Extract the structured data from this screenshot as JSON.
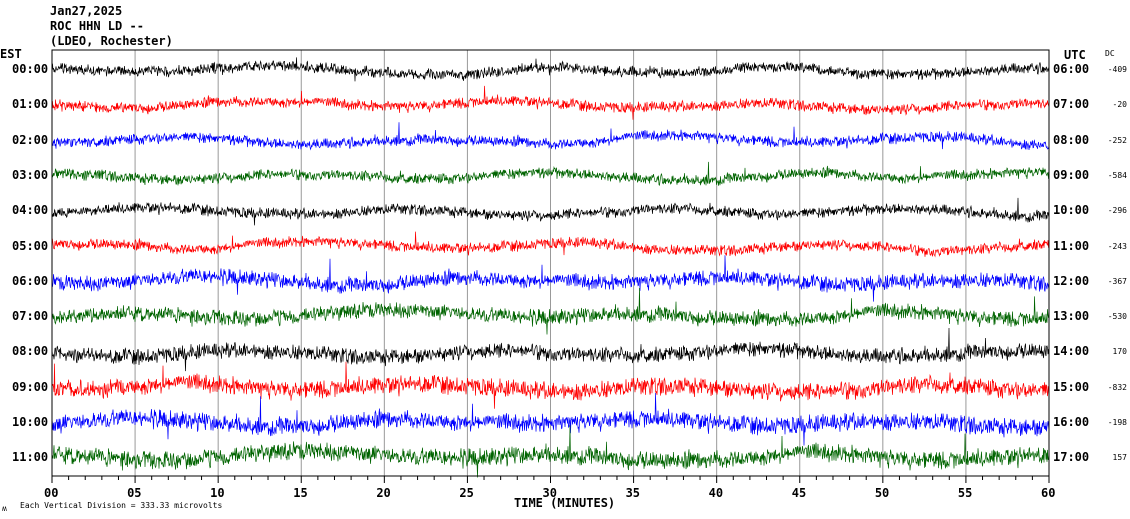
{
  "header": {
    "date": "Jan27,2025",
    "station": "ROC HHN LD --",
    "network": "(LDEO, Rochester)"
  },
  "chart_data": {
    "type": "line",
    "title": "ROC HHN LD --",
    "left_axis_label": "EST",
    "right_axis_label": "UTC",
    "dc_label": "DC",
    "xlabel": "TIME (MINUTES)",
    "xlim": [
      0,
      60
    ],
    "x_ticks": [
      "00",
      "05",
      "10",
      "15",
      "20",
      "25",
      "30",
      "35",
      "40",
      "45",
      "50",
      "55",
      "60"
    ],
    "grid": true,
    "scale_note": "Each Vertical Division =   333.33 microvolts",
    "corner_mark": "ʍ",
    "trace_colors": [
      "#000000",
      "#ff0000",
      "#0000ff",
      "#006400"
    ],
    "rows": [
      {
        "est": "00:00",
        "utc": "06:00",
        "dc": "-409"
      },
      {
        "est": "01:00",
        "utc": "07:00",
        "dc": "-20"
      },
      {
        "est": "02:00",
        "utc": "08:00",
        "dc": "-252"
      },
      {
        "est": "03:00",
        "utc": "09:00",
        "dc": "-584"
      },
      {
        "est": "04:00",
        "utc": "10:00",
        "dc": "-296"
      },
      {
        "est": "05:00",
        "utc": "11:00",
        "dc": "-243"
      },
      {
        "est": "06:00",
        "utc": "12:00",
        "dc": "-367"
      },
      {
        "est": "07:00",
        "utc": "13:00",
        "dc": "-530"
      },
      {
        "est": "08:00",
        "utc": "14:00",
        "dc": "170"
      },
      {
        "est": "09:00",
        "utc": "15:00",
        "dc": "-832"
      },
      {
        "est": "10:00",
        "utc": "16:00",
        "dc": "-198"
      },
      {
        "est": "11:00",
        "utc": "17:00",
        "dc": "157"
      }
    ]
  }
}
